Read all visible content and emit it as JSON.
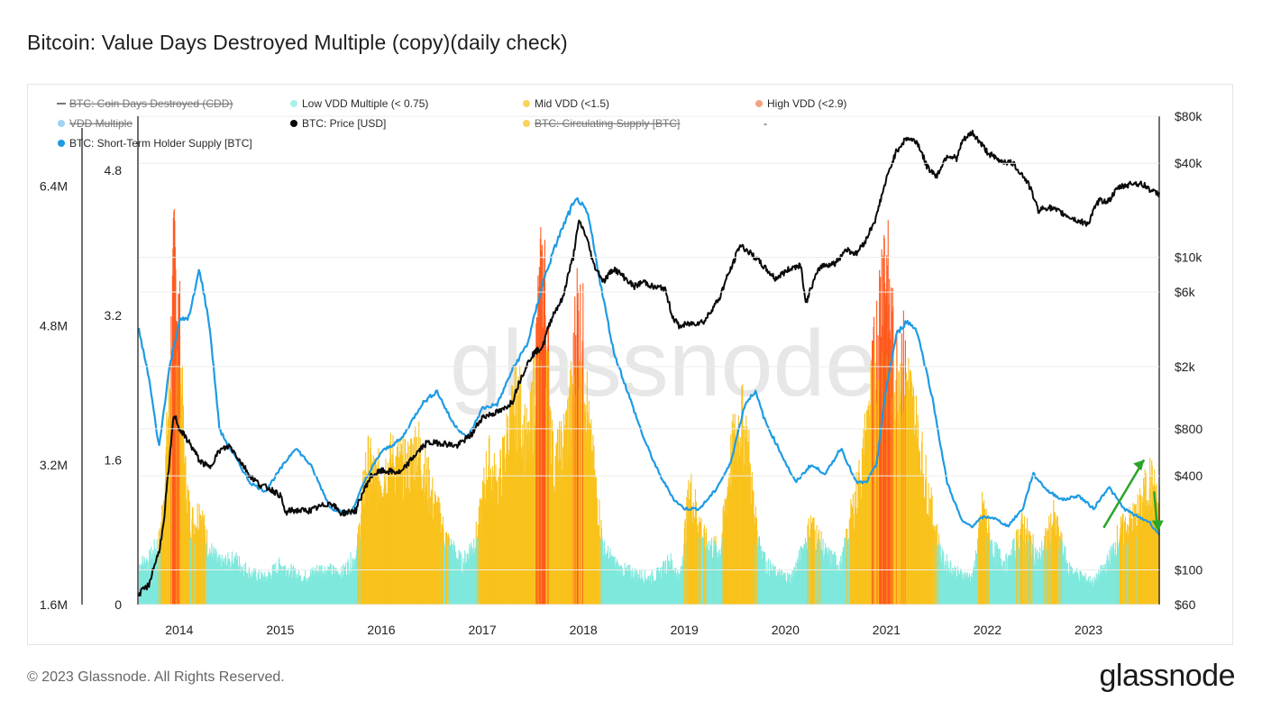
{
  "title": "Bitcoin: Value Days Destroyed Multiple (copy)(daily check)",
  "footer": {
    "copyright": "© 2023 Glassnode. All Rights Reserved.",
    "brand": "glassnode"
  },
  "watermark": "glassnode",
  "colors": {
    "low_vdd": "#7ee8dc",
    "mid_vdd": "#f9c21c",
    "high_vdd": "#ff5a1f",
    "vdd_line": "#1e9be4",
    "price": "#0a0a0a",
    "arrow": "#2aa52a"
  },
  "legend": [
    {
      "label": "BTC: Coin Days Destroyed (CDD)",
      "color": "#777777",
      "disabled": true,
      "marker": "line"
    },
    {
      "label": "Low VDD Multiple (< 0.75)",
      "color": "#a8f1ea",
      "disabled": false,
      "marker": "dot"
    },
    {
      "label": "Mid VDD (<1.5)",
      "color": "#f9d35a",
      "disabled": false,
      "marker": "dot"
    },
    {
      "label": "High VDD (<2.9)",
      "color": "#f4a281",
      "disabled": false,
      "marker": "dot"
    },
    {
      "label": "VDD Multiple",
      "color": "#9fd3f3",
      "disabled": true,
      "marker": "dot"
    },
    {
      "label": "BTC: Price [USD]",
      "color": "#0a0a0a",
      "disabled": false,
      "marker": "dot"
    },
    {
      "label": "BTC: Circulating Supply [BTC]",
      "color": "#f9d35a",
      "disabled": true,
      "marker": "dot"
    },
    {
      "label": "-",
      "color": "",
      "disabled": false,
      "marker": "none"
    },
    {
      "label": "BTC: Short-Term Holder Supply [BTC]",
      "color": "#1e9be4",
      "disabled": false,
      "marker": "dot"
    }
  ],
  "chart_data": {
    "type": "area",
    "title": "Bitcoin: Value Days Destroyed Multiple (copy)(daily check)",
    "x_range": [
      2013.6,
      2023.7
    ],
    "x_ticks": [
      "2014",
      "2015",
      "2016",
      "2017",
      "2018",
      "2019",
      "2020",
      "2021",
      "2022",
      "2023"
    ],
    "x_tick_values": [
      2014,
      2015,
      2016,
      2017,
      2018,
      2019,
      2020,
      2021,
      2022,
      2023
    ],
    "axes": {
      "sth_supply": {
        "label": "BTC: Short-Term Holder Supply [BTC]",
        "range": [
          1600000,
          7200000
        ],
        "ticks": [
          "1.6M",
          "3.2M",
          "4.8M",
          "6.4M"
        ],
        "tick_values": [
          1600000,
          3200000,
          4800000,
          6400000
        ]
      },
      "vdd_multiple": {
        "label": "VDD Multiple",
        "range": [
          0,
          5.4
        ],
        "ticks": [
          "0",
          "1.6",
          "3.2",
          "4.8"
        ],
        "tick_values": [
          0,
          1.6,
          3.2,
          4.8
        ]
      },
      "price": {
        "label": "BTC: Price [USD]",
        "scale": "log",
        "range": [
          60,
          80000
        ],
        "ticks": [
          "$60",
          "$100",
          "$400",
          "$800",
          "$2k",
          "$6k",
          "$10k",
          "$40k",
          "$80k"
        ],
        "tick_values": [
          60,
          100,
          400,
          800,
          2000,
          6000,
          10000,
          40000,
          80000
        ]
      }
    },
    "vdd_thresholds": {
      "low": 0.75,
      "mid": 1.5,
      "high": 2.9
    },
    "vdd_multiple": {
      "x": [
        2013.6,
        2013.7,
        2013.8,
        2013.85,
        2013.9,
        2013.95,
        2014.0,
        2014.05,
        2014.1,
        2014.15,
        2014.2,
        2014.25,
        2014.3,
        2014.4,
        2014.55,
        2014.7,
        2014.85,
        2015.0,
        2015.2,
        2015.4,
        2015.6,
        2015.75,
        2015.85,
        2015.95,
        2016.1,
        2016.25,
        2016.35,
        2016.5,
        2016.65,
        2016.8,
        2016.95,
        2017.05,
        2017.15,
        2017.25,
        2017.35,
        2017.45,
        2017.5,
        2017.55,
        2017.6,
        2017.65,
        2017.7,
        2017.8,
        2017.88,
        2017.93,
        2018.0,
        2018.05,
        2018.12,
        2018.2,
        2018.35,
        2018.5,
        2018.65,
        2018.75,
        2018.85,
        2018.95,
        2019.05,
        2019.2,
        2019.35,
        2019.45,
        2019.55,
        2019.62,
        2019.7,
        2019.8,
        2019.9,
        2020.05,
        2020.15,
        2020.25,
        2020.4,
        2020.55,
        2020.65,
        2020.75,
        2020.85,
        2020.92,
        2020.97,
        2021.02,
        2021.08,
        2021.15,
        2021.25,
        2021.35,
        2021.45,
        2021.55,
        2021.7,
        2021.85,
        2021.95,
        2022.05,
        2022.2,
        2022.35,
        2022.5,
        2022.65,
        2022.8,
        2022.95,
        2023.05,
        2023.2,
        2023.3,
        2023.4,
        2023.5,
        2023.6,
        2023.7
      ],
      "y": [
        0.45,
        0.5,
        0.7,
        1.3,
        2.5,
        3.9,
        3.0,
        1.5,
        1.0,
        0.9,
        1.1,
        0.8,
        0.6,
        0.45,
        0.5,
        0.35,
        0.3,
        0.45,
        0.3,
        0.4,
        0.35,
        0.55,
        1.6,
        1.4,
        1.6,
        1.5,
        1.8,
        1.2,
        0.7,
        0.45,
        0.8,
        1.6,
        1.3,
        1.9,
        2.3,
        1.7,
        2.3,
        3.2,
        3.8,
        2.6,
        1.5,
        1.8,
        2.3,
        3.3,
        2.9,
        1.9,
        1.3,
        0.6,
        0.4,
        0.35,
        0.3,
        0.35,
        0.5,
        0.3,
        1.3,
        0.7,
        0.6,
        1.6,
        2.1,
        1.8,
        0.9,
        0.45,
        0.35,
        0.3,
        0.55,
        0.9,
        0.55,
        0.45,
        1.0,
        1.5,
        2.4,
        3.2,
        4.0,
        3.4,
        2.6,
        2.8,
        2.2,
        1.6,
        1.0,
        0.5,
        0.35,
        0.3,
        1.1,
        0.6,
        0.45,
        0.9,
        0.5,
        0.95,
        0.4,
        0.3,
        0.25,
        0.5,
        0.8,
        0.9,
        1.05,
        1.4,
        1.1
      ]
    },
    "btc_price_usd": {
      "x": [
        2013.6,
        2013.7,
        2013.8,
        2013.85,
        2013.9,
        2013.95,
        2014.0,
        2014.1,
        2014.2,
        2014.3,
        2014.4,
        2014.5,
        2014.6,
        2014.7,
        2014.8,
        2014.9,
        2015.0,
        2015.05,
        2015.1,
        2015.3,
        2015.5,
        2015.6,
        2015.75,
        2015.9,
        2016.0,
        2016.2,
        2016.45,
        2016.6,
        2016.75,
        2016.9,
        2017.0,
        2017.1,
        2017.2,
        2017.3,
        2017.4,
        2017.5,
        2017.6,
        2017.7,
        2017.8,
        2017.9,
        2017.96,
        2018.02,
        2018.1,
        2018.2,
        2018.3,
        2018.4,
        2018.5,
        2018.6,
        2018.7,
        2018.8,
        2018.88,
        2018.95,
        2019.0,
        2019.2,
        2019.35,
        2019.48,
        2019.55,
        2019.7,
        2019.8,
        2019.9,
        2020.05,
        2020.15,
        2020.2,
        2020.35,
        2020.5,
        2020.6,
        2020.7,
        2020.8,
        2020.9,
        2020.97,
        2021.03,
        2021.1,
        2021.2,
        2021.3,
        2021.4,
        2021.5,
        2021.6,
        2021.7,
        2021.75,
        2021.85,
        2021.9,
        2022.0,
        2022.1,
        2022.25,
        2022.4,
        2022.5,
        2022.6,
        2022.75,
        2022.9,
        2023.0,
        2023.1,
        2023.2,
        2023.3,
        2023.45,
        2023.55,
        2023.65,
        2023.7
      ],
      "y": [
        70,
        80,
        130,
        200,
        450,
        1000,
        800,
        650,
        500,
        450,
        580,
        620,
        500,
        400,
        350,
        330,
        300,
        230,
        240,
        240,
        270,
        230,
        240,
        400,
        430,
        420,
        650,
        650,
        620,
        740,
        950,
        1000,
        1050,
        1200,
        1800,
        2400,
        2700,
        4300,
        5500,
        10000,
        17000,
        14000,
        9000,
        7000,
        8500,
        7500,
        6500,
        7000,
        6400,
        6400,
        4200,
        3600,
        3700,
        3900,
        5500,
        9000,
        12000,
        10000,
        8500,
        7300,
        8500,
        9000,
        5000,
        8800,
        9200,
        11300,
        10500,
        13000,
        18000,
        27000,
        36000,
        48000,
        58000,
        55000,
        38000,
        33000,
        45000,
        43000,
        55000,
        63000,
        57000,
        47000,
        42000,
        40000,
        30000,
        20000,
        21000,
        19000,
        17000,
        16500,
        23000,
        23000,
        28000,
        30000,
        29000,
        26000,
        25500
      ]
    },
    "sth_supply_btc": {
      "x": [
        2013.6,
        2013.7,
        2013.8,
        2013.9,
        2014.0,
        2014.1,
        2014.2,
        2014.3,
        2014.4,
        2014.55,
        2014.7,
        2014.85,
        2015.0,
        2015.15,
        2015.3,
        2015.5,
        2015.7,
        2015.85,
        2016.0,
        2016.2,
        2016.4,
        2016.55,
        2016.7,
        2016.85,
        2017.0,
        2017.15,
        2017.3,
        2017.45,
        2017.6,
        2017.75,
        2017.88,
        2017.95,
        2018.05,
        2018.15,
        2018.3,
        2018.45,
        2018.6,
        2018.75,
        2018.9,
        2019.0,
        2019.15,
        2019.3,
        2019.45,
        2019.6,
        2019.7,
        2019.8,
        2019.95,
        2020.1,
        2020.25,
        2020.4,
        2020.55,
        2020.7,
        2020.8,
        2020.9,
        2021.0,
        2021.1,
        2021.2,
        2021.3,
        2021.45,
        2021.6,
        2021.75,
        2021.85,
        2021.95,
        2022.05,
        2022.2,
        2022.35,
        2022.45,
        2022.6,
        2022.75,
        2022.9,
        2023.05,
        2023.2,
        2023.35,
        2023.5,
        2023.6,
        2023.7
      ],
      "y": [
        4.75,
        4.2,
        3.4,
        4.3,
        4.85,
        4.9,
        5.45,
        4.8,
        3.6,
        3.3,
        3.0,
        2.9,
        3.15,
        3.4,
        3.2,
        2.7,
        2.65,
        3.05,
        3.35,
        3.5,
        3.9,
        4.05,
        3.7,
        3.5,
        3.85,
        3.9,
        4.3,
        4.6,
        5.3,
        5.8,
        6.15,
        6.25,
        6.05,
        5.4,
        4.5,
        4.0,
        3.5,
        3.1,
        2.8,
        2.7,
        2.7,
        2.9,
        3.2,
        3.9,
        4.05,
        3.7,
        3.35,
        3.0,
        3.2,
        3.1,
        3.4,
        3.0,
        3.0,
        3.2,
        4.1,
        4.7,
        4.85,
        4.75,
        4.0,
        3.0,
        2.55,
        2.5,
        2.6,
        2.6,
        2.5,
        2.7,
        3.1,
        2.9,
        2.8,
        2.85,
        2.7,
        2.95,
        2.7,
        2.6,
        2.55,
        2.4
      ]
    }
  }
}
